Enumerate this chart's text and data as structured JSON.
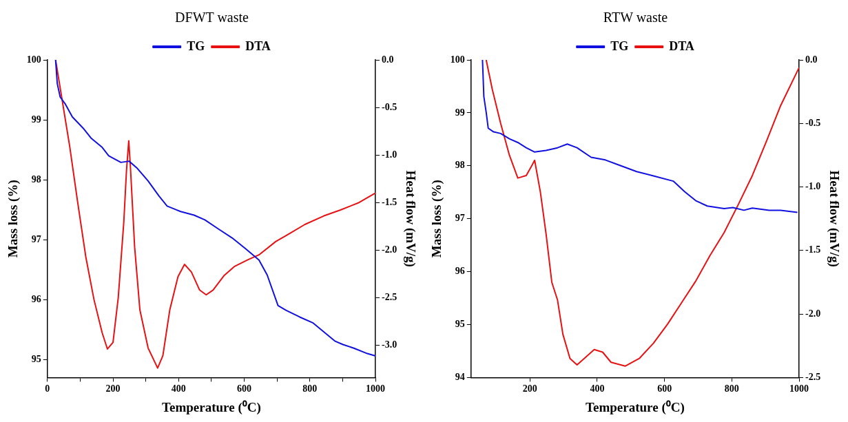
{
  "chart_data": [
    {
      "type": "line",
      "title": "DFWT waste",
      "xlabel": "Temperature (⁰C)",
      "ylabel": "Mass loss (%)",
      "y2label": "Heat flow (mV/g)",
      "xlim": [
        0,
        1000
      ],
      "xticks": [
        0,
        {
          "value": 100,
          "label": null
        },
        200,
        {
          "value": 300,
          "label": null
        },
        400,
        {
          "value": 500,
          "label": null
        },
        600,
        {
          "value": 700,
          "label": null
        },
        800,
        {
          "value": 900,
          "label": null
        },
        1000
      ],
      "ylim": [
        94.7,
        100
      ],
      "yticks": [
        95,
        96,
        97,
        98,
        99,
        100
      ],
      "y2lim": [
        -3.34,
        0
      ],
      "y2ticks": [
        {
          "value": -3,
          "label": "-3.0"
        },
        -2.5,
        {
          "value": -2,
          "label": "-2.0"
        },
        -1.5,
        {
          "value": -1,
          "label": "-1.0"
        },
        -0.5,
        {
          "value": 0,
          "label": "0.0"
        }
      ],
      "grid": false,
      "legend": "top",
      "marker": "none",
      "line_style": "solid",
      "series": [
        {
          "name": "TG",
          "color": "#1010e0",
          "x": [
            25,
            30,
            39,
            55,
            76,
            109,
            134,
            167,
            187,
            224,
            249,
            274,
            307,
            340,
            365,
            406,
            447,
            480,
            521,
            563,
            604,
            645,
            670,
            703,
            728,
            769,
            810,
            843,
            876,
            901,
            934,
            975,
            1000
          ],
          "values": [
            100,
            99.61,
            99.38,
            99.26,
            99.05,
            98.86,
            98.69,
            98.54,
            98.4,
            98.29,
            98.31,
            98.19,
            97.98,
            97.73,
            97.56,
            97.47,
            97.41,
            97.33,
            97.18,
            97.03,
            96.85,
            96.66,
            96.41,
            95.9,
            95.82,
            95.71,
            95.61,
            95.46,
            95.31,
            95.25,
            95.19,
            95.1,
            95.06
          ]
        },
        {
          "name": "DTA",
          "color": "#e81010",
          "axis": "y2",
          "x": [
            25,
            43,
            68,
            92,
            117,
            142,
            167,
            183,
            200,
            216,
            233,
            241,
            248,
            253,
            266,
            282,
            307,
            336,
            352,
            373,
            398,
            418,
            439,
            464,
            484,
            505,
            538,
            571,
            612,
            645,
            696,
            736,
            785,
            843,
            892,
            950,
            1000
          ],
          "values": [
            0,
            -0.38,
            -0.91,
            -1.49,
            -2.07,
            -2.52,
            -2.87,
            -3.04,
            -2.97,
            -2.5,
            -1.7,
            -1.17,
            -0.85,
            -1.12,
            -1.97,
            -2.63,
            -3.03,
            -3.24,
            -3.11,
            -2.63,
            -2.28,
            -2.15,
            -2.23,
            -2.42,
            -2.47,
            -2.42,
            -2.27,
            -2.17,
            -2.1,
            -2.05,
            -1.91,
            -1.83,
            -1.73,
            -1.64,
            -1.58,
            -1.5,
            -1.4
          ]
        }
      ]
    },
    {
      "type": "line",
      "title": "RTW waste",
      "xlabel": "Temperature (⁰C)",
      "ylabel": "Mass loss (%)",
      "y2label": "Heat flow (mV/g)",
      "xlim": [
        25,
        1000
      ],
      "xticks": [
        200,
        400,
        600,
        800,
        1000
      ],
      "ylim": [
        94,
        100
      ],
      "yticks": [
        94,
        95,
        96,
        97,
        98,
        99,
        100
      ],
      "y2lim": [
        -2.5,
        0
      ],
      "y2ticks": [
        -2.5,
        {
          "value": -2,
          "label": "-2.0"
        },
        -1.5,
        {
          "value": -1,
          "label": "-1.0"
        },
        -0.5,
        {
          "value": 0,
          "label": "0.0"
        }
      ],
      "grid": false,
      "legend": "top",
      "marker": "none",
      "line_style": "solid",
      "series": [
        {
          "name": "TG",
          "color": "#1010e0",
          "x": [
            59,
            63,
            70,
            76,
            92,
            113,
            139,
            164,
            189,
            214,
            248,
            282,
            311,
            340,
            382,
            424,
            466,
            517,
            567,
            626,
            660,
            693,
            727,
            777,
            803,
            836,
            861,
            911,
            945,
            995
          ],
          "values": [
            100,
            99.31,
            99.01,
            98.71,
            98.64,
            98.61,
            98.51,
            98.44,
            98.34,
            98.26,
            98.29,
            98.34,
            98.41,
            98.34,
            98.16,
            98.11,
            98.01,
            97.89,
            97.81,
            97.71,
            97.51,
            97.34,
            97.24,
            97.19,
            97.21,
            97.16,
            97.2,
            97.16,
            97.16,
            97.12
          ]
        },
        {
          "name": "DTA",
          "color": "#e81010",
          "axis": "y2",
          "x": [
            70,
            88,
            113,
            139,
            164,
            189,
            206,
            214,
            231,
            248,
            265,
            282,
            298,
            319,
            340,
            366,
            391,
            416,
            441,
            483,
            525,
            567,
            609,
            651,
            693,
            735,
            777,
            819,
            861,
            903,
            945,
            1000
          ],
          "values": [
            0,
            -0.23,
            -0.5,
            -0.75,
            -0.93,
            -0.91,
            -0.83,
            -0.79,
            -1.04,
            -1.37,
            -1.75,
            -1.89,
            -2.16,
            -2.35,
            -2.4,
            -2.34,
            -2.28,
            -2.3,
            -2.38,
            -2.41,
            -2.35,
            -2.23,
            -2.08,
            -1.91,
            -1.74,
            -1.54,
            -1.36,
            -1.14,
            -0.91,
            -0.64,
            -0.36,
            -0.06
          ]
        }
      ]
    }
  ]
}
